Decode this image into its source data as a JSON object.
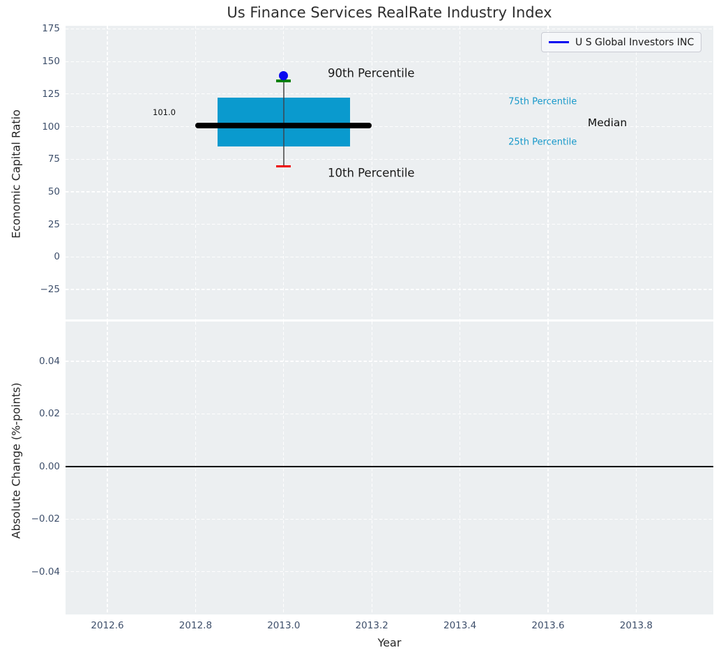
{
  "figure": {
    "title": "Us Finance Services RealRate Industry Index",
    "bg_color": "#ffffff",
    "plot_bg_color": "#eceff1",
    "grid_color": "#ffffff",
    "tick_color": "#3e4f6b"
  },
  "chart_data": [
    {
      "type": "box",
      "title": "Us Finance Services RealRate Industry Index",
      "ylabel": "Economic Capital Ratio",
      "xlim": [
        2012.505,
        2013.975
      ],
      "ylim": [
        -48,
        177.4
      ],
      "grid": true,
      "legend": {
        "labels": [
          "U S Global Investors INC"
        ],
        "position": "upper right",
        "line_color": "#0404f0"
      },
      "box": {
        "x_center": 2013.0,
        "p90": 135,
        "p75": 122,
        "median": 101,
        "p25": 85,
        "p10": 69.5,
        "company_value": 139,
        "median_label": "101.0",
        "box_halfwidth_years": 0.15,
        "median_halfwidth_years": 0.2,
        "cap_halfwidth_years": 0.0166,
        "box_color": "#0a9ace",
        "median_color": "#000000",
        "whisker_color": "#6e6e6e",
        "p90_cap_color": "#008000",
        "p10_cap_color": "#ee0000",
        "company_dot_color": "#0a0af0"
      },
      "annotations": [
        {
          "text": "90th Percentile",
          "x": 2013.1,
          "y": 141,
          "color": "#1a1a1a",
          "size": 16.5,
          "align": "left"
        },
        {
          "text": "10th Percentile",
          "x": 2013.1,
          "y": 64.5,
          "color": "#1a1a1a",
          "size": 16.5,
          "align": "left"
        },
        {
          "text": "75th Percentile",
          "x": 2013.51,
          "y": 119,
          "color": "#1899ca",
          "size": 13,
          "align": "left"
        },
        {
          "text": "25th Percentile",
          "x": 2013.51,
          "y": 88,
          "color": "#1899ca",
          "size": 13,
          "align": "left"
        },
        {
          "text": "Median",
          "x": 2013.69,
          "y": 103,
          "color": "#111111",
          "size": 15.5,
          "align": "left"
        },
        {
          "text": "101.0",
          "x": 2012.755,
          "y": 111,
          "color": "#111111",
          "size": 11.5,
          "align": "right"
        }
      ],
      "yticks": {
        "values": [
          175,
          150,
          125,
          100,
          75,
          50,
          25,
          0,
          -25
        ],
        "labels": [
          "175",
          "150",
          "125",
          "100",
          "75",
          "50",
          "25",
          "0",
          "−25"
        ]
      },
      "xticks": {
        "values": [
          2012.6,
          2012.8,
          2013.0,
          2013.2,
          2013.4,
          2013.6,
          2013.8
        ],
        "labels": [
          "2012.6",
          "2012.8",
          "2013.0",
          "2013.2",
          "2013.4",
          "2013.6",
          "2013.8"
        ]
      }
    },
    {
      "type": "line",
      "ylabel": "Absolute Change (%-points)",
      "xlabel": "Year",
      "xlim": [
        2012.505,
        2013.975
      ],
      "ylim": [
        -0.0562,
        0.0551
      ],
      "grid": true,
      "zero_line": 0.0,
      "zero_line_color": "#000000",
      "series": [],
      "yticks": {
        "values": [
          0.04,
          0.02,
          0,
          -0.02,
          -0.04
        ],
        "labels": [
          "0.04",
          "0.02",
          "0.00",
          "−0.02",
          "−0.04"
        ]
      },
      "xticks": {
        "values": [
          2012.6,
          2012.8,
          2013.0,
          2013.2,
          2013.4,
          2013.6,
          2013.8
        ],
        "labels": [
          "2012.6",
          "2012.8",
          "2013.0",
          "2013.2",
          "2013.4",
          "2013.6",
          "2013.8"
        ]
      }
    }
  ]
}
